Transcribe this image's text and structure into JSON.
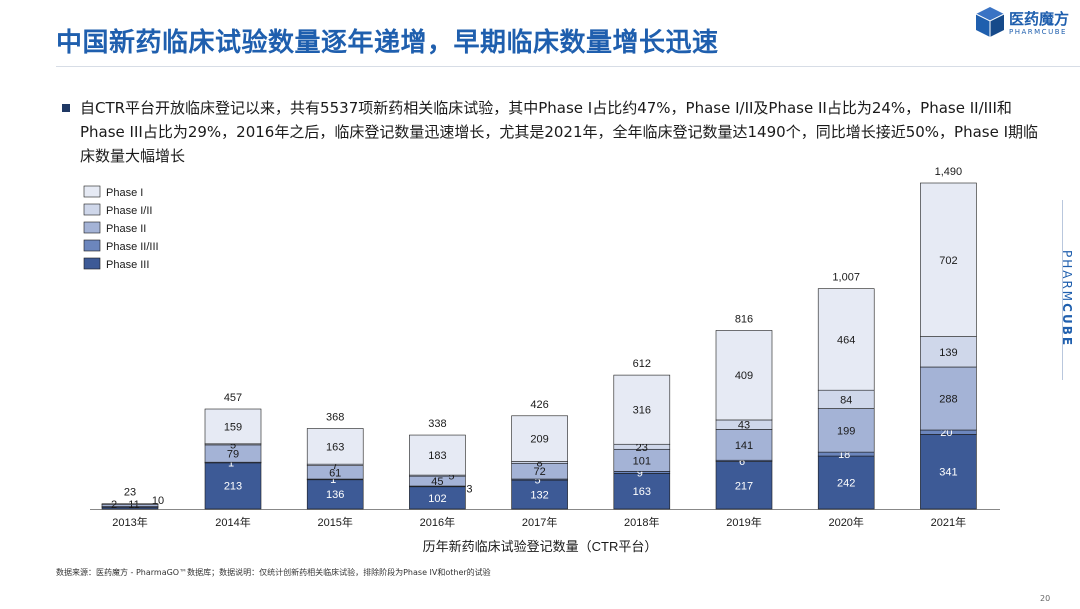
{
  "title": "中国新药临床试验数量逐年递增，早期临床数量增长迅速",
  "logo": {
    "cn": "医药魔方",
    "en": "PHARMCUBE"
  },
  "side_brand": {
    "light": "PHARM",
    "bold": "CUBE"
  },
  "bullet": "自CTR平台开放临床登记以来，共有5537项新药相关临床试验，其中Phase I占比约47%，Phase I/II及Phase II占比为24%，Phase II/III和Phase III占比为29%，2016年之后，临床登记数量迅速增长，尤其是2021年，全年临床登记数量达1490个，同比增长接近50%，Phase I期临床数量大幅增长",
  "source": "数据来源：医药魔方 - PharmaGO™数据库；数据说明：仅统计创新药相关临床试验，排除阶段为Phase IV和other的试验",
  "page_number": "20",
  "chart_data": {
    "type": "bar",
    "stacked": true,
    "categories": [
      "2013年",
      "2014年",
      "2015年",
      "2016年",
      "2017年",
      "2018年",
      "2019年",
      "2020年",
      "2021年"
    ],
    "series": [
      {
        "name": "Phase III",
        "color": "#3d5a96",
        "label_color": "#ffffff",
        "values": [
          10,
          213,
          136,
          102,
          132,
          163,
          217,
          242,
          341
        ]
      },
      {
        "name": "Phase II/III",
        "color": "#6c86bd",
        "label_color": "#ffffff",
        "values": [
          1,
          1,
          1,
          3,
          5,
          9,
          6,
          18,
          20
        ]
      },
      {
        "name": "Phase II",
        "color": "#a4b3d6",
        "label_color": "#1a1a1a",
        "values": [
          11,
          79,
          61,
          45,
          72,
          101,
          141,
          199,
          288
        ]
      },
      {
        "name": "Phase I/II",
        "color": "#cfd7ea",
        "label_color": "#1a1a1a",
        "values": [
          2,
          5,
          7,
          5,
          8,
          23,
          43,
          84,
          139
        ]
      },
      {
        "name": "Phase I",
        "color": "#e6eaf4",
        "label_color": "#1a1a1a",
        "values": [
          0,
          159,
          163,
          183,
          209,
          316,
          409,
          464,
          702
        ]
      }
    ],
    "data_labels": [
      [
        "10",
        "213",
        "136",
        "102",
        "132",
        "163",
        "217",
        "242",
        "341"
      ],
      [
        "",
        "1",
        "1",
        "3",
        "5",
        "9",
        "6",
        "18",
        "20"
      ],
      [
        "11",
        "79",
        "61",
        "45",
        "72",
        "101",
        "141",
        "199",
        "288"
      ],
      [
        "2",
        "5",
        "7",
        "5",
        "8",
        "23",
        "43",
        "84",
        "139"
      ],
      [
        "",
        "159",
        "163",
        "183",
        "209",
        "316",
        "409",
        "464",
        "702"
      ]
    ],
    "totals": [
      "23",
      "457",
      "368",
      "338",
      "426",
      "612",
      "816",
      "1,007",
      "1,490"
    ],
    "legend": [
      "Phase I",
      "Phase I/II",
      "Phase II",
      "Phase II/III",
      "Phase III"
    ],
    "legend_position": "top-left",
    "xlabel": "历年新药临床试验登记数量（CTR平台）",
    "ylim": [
      0,
      1490
    ],
    "grid": false
  }
}
